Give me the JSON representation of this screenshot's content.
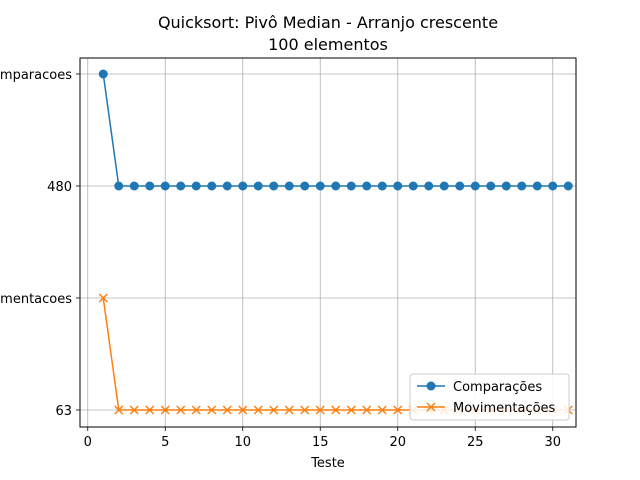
{
  "chart_data": {
    "type": "line",
    "title": "Quicksort: Pivô Median - Arranjo crescente",
    "subtitle": "100 elementos",
    "xlabel": "Teste",
    "ylabel": "",
    "x_ticks": [
      "0",
      "5",
      "10",
      "15",
      "20",
      "25",
      "30"
    ],
    "y_categories": [
      "Comparacoes",
      "480",
      "Movimentacoes",
      "63"
    ],
    "grid": true,
    "legend_position": "lower-right",
    "x": [
      1,
      2,
      3,
      4,
      5,
      6,
      7,
      8,
      9,
      10,
      11,
      12,
      13,
      14,
      15,
      16,
      17,
      18,
      19,
      20,
      21,
      22,
      23,
      24,
      25,
      26,
      27,
      28,
      29,
      30,
      31
    ],
    "series": [
      {
        "name": "Comparações",
        "color": "#1f77b4",
        "marker": "circle",
        "values": [
          "Comparacoes",
          "480",
          "480",
          "480",
          "480",
          "480",
          "480",
          "480",
          "480",
          "480",
          "480",
          "480",
          "480",
          "480",
          "480",
          "480",
          "480",
          "480",
          "480",
          "480",
          "480",
          "480",
          "480",
          "480",
          "480",
          "480",
          "480",
          "480",
          "480",
          "480",
          "480"
        ]
      },
      {
        "name": "Movimentações",
        "color": "#ff7f0e",
        "marker": "x",
        "values": [
          "Movimentacoes",
          "63",
          "63",
          "63",
          "63",
          "63",
          "63",
          "63",
          "63",
          "63",
          "63",
          "63",
          "63",
          "63",
          "63",
          "63",
          "63",
          "63",
          "63",
          "63",
          "63",
          "63",
          "63",
          "63",
          "63",
          "63",
          "63",
          "63",
          "63",
          "63",
          "63"
        ]
      }
    ]
  }
}
